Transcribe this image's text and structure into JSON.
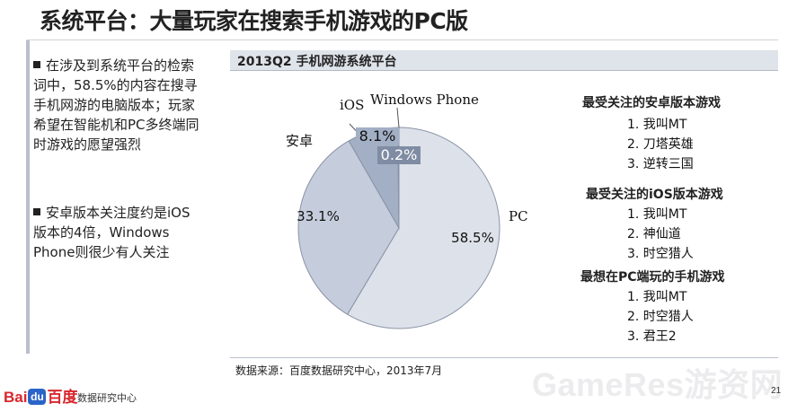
{
  "title": "系统平台：大量玩家在搜索手机游戏的PC版",
  "bullets": [
    "在涉及到系统平台的检索词中，58.5%的内容在搜寻手机网游的电脑版本；玩家希望在智能机和PC多终端同时游戏的愿望强烈",
    "安卓版本关注度约是iOS版本的4倍，Windows Phone则很少有人关注"
  ],
  "chart_header": "2013Q2 手机网游系统平台",
  "chart_data": {
    "type": "pie",
    "title": "2013Q2 手机网游系统平台",
    "slices": [
      {
        "label": "PC",
        "value": 58.5,
        "value_label": "58.5%",
        "color": "#dde2ea"
      },
      {
        "label": "安卓",
        "value": 33.1,
        "value_label": "33.1%",
        "color": "#c5cddc"
      },
      {
        "label": "iOS",
        "value": 8.1,
        "value_label": "8.1%",
        "color": "#a2afc4"
      },
      {
        "label": "Windows Phone",
        "value": 0.2,
        "value_label": "0.2%",
        "color": "#555c6a"
      }
    ],
    "start": "top",
    "direction": "clockwise",
    "legend": "none"
  },
  "rankings": [
    {
      "title": "最受关注的安卓版本游戏",
      "items": [
        "1.  我叫MT",
        "2.  刀塔英雄",
        "3.  逆转三国"
      ]
    },
    {
      "title": "最受关注的iOS版本游戏",
      "items": [
        "1.  我叫MT",
        "2.  神仙道",
        "3.  时空猎人"
      ]
    },
    {
      "title": "最想在PC端玩的手机游戏",
      "items": [
        "1.  我叫MT",
        "2.  时空猎人",
        "3.  君王2"
      ]
    }
  ],
  "source": "数据来源：百度数据研究中心，2013年7月",
  "logo": {
    "bai": "Bai",
    "du": "du",
    "baidu_cn": "百度",
    "sub": "数据研究中心"
  },
  "watermark": "GameRes游资网",
  "page_number": "21"
}
